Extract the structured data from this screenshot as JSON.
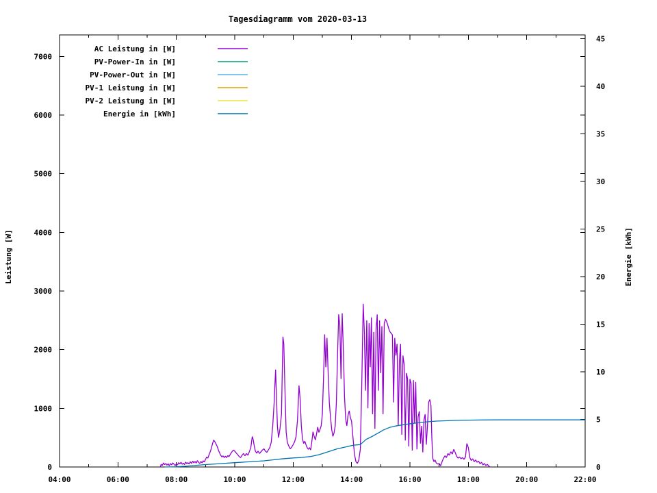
{
  "page": {
    "background": "#ffffff"
  },
  "chart_data": {
    "type": "line",
    "title": "Tagesdiagramm vom 2020-03-13",
    "grid": "off",
    "legend": {
      "position": "top-left",
      "border": false
    },
    "x_axis": {
      "unit": "time",
      "range_hours": [
        4,
        22
      ],
      "major_tick_step_hours": 2,
      "minor_tick_step_hours": 1,
      "tick_labels": [
        "04:00",
        "06:00",
        "08:00",
        "10:00",
        "12:00",
        "14:00",
        "16:00",
        "18:00",
        "20:00",
        "22:00"
      ]
    },
    "y_axis_left": {
      "label": "Leistung [W]",
      "range": [
        0,
        7365
      ],
      "ticks": [
        0,
        1000,
        2000,
        3000,
        4000,
        5000,
        6000,
        7000
      ]
    },
    "y_axis_right": {
      "label": "Energie [kWh]",
      "range": [
        0,
        45.4
      ],
      "ticks": [
        0,
        5,
        10,
        15,
        20,
        25,
        30,
        35,
        40,
        45
      ]
    },
    "series": [
      {
        "name": "AC Leistung in [W]",
        "color": "#9400d3",
        "axis": "left",
        "points": [
          [
            7.45,
            0
          ],
          [
            7.48,
            45
          ],
          [
            7.52,
            25
          ],
          [
            7.56,
            70
          ],
          [
            7.6,
            40
          ],
          [
            7.64,
            60
          ],
          [
            7.68,
            30
          ],
          [
            7.72,
            55
          ],
          [
            7.76,
            20
          ],
          [
            7.8,
            60
          ],
          [
            7.84,
            35
          ],
          [
            7.88,
            70
          ],
          [
            7.92,
            45
          ],
          [
            7.96,
            25
          ],
          [
            8,
            55
          ],
          [
            8.04,
            35
          ],
          [
            8.08,
            75
          ],
          [
            8.12,
            50
          ],
          [
            8.16,
            80
          ],
          [
            8.2,
            45
          ],
          [
            8.24,
            65
          ],
          [
            8.28,
            40
          ],
          [
            8.32,
            85
          ],
          [
            8.36,
            55
          ],
          [
            8.4,
            75
          ],
          [
            8.44,
            50
          ],
          [
            8.48,
            90
          ],
          [
            8.52,
            60
          ],
          [
            8.56,
            100
          ],
          [
            8.6,
            70
          ],
          [
            8.64,
            95
          ],
          [
            8.68,
            65
          ],
          [
            8.72,
            110
          ],
          [
            8.76,
            80
          ],
          [
            8.8,
            60
          ],
          [
            8.84,
            95
          ],
          [
            8.88,
            70
          ],
          [
            8.92,
            105
          ],
          [
            8.96,
            85
          ],
          [
            9,
            130
          ],
          [
            9.04,
            170
          ],
          [
            9.08,
            150
          ],
          [
            9.12,
            210
          ],
          [
            9.16,
            260
          ],
          [
            9.2,
            320
          ],
          [
            9.24,
            400
          ],
          [
            9.28,
            460
          ],
          [
            9.32,
            430
          ],
          [
            9.36,
            390
          ],
          [
            9.4,
            350
          ],
          [
            9.44,
            290
          ],
          [
            9.48,
            240
          ],
          [
            9.52,
            200
          ],
          [
            9.56,
            170
          ],
          [
            9.6,
            190
          ],
          [
            9.64,
            160
          ],
          [
            9.68,
            185
          ],
          [
            9.72,
            160
          ],
          [
            9.76,
            195
          ],
          [
            9.8,
            175
          ],
          [
            9.84,
            210
          ],
          [
            9.88,
            240
          ],
          [
            9.92,
            270
          ],
          [
            9.96,
            290
          ],
          [
            10,
            270
          ],
          [
            10.05,
            240
          ],
          [
            10.1,
            210
          ],
          [
            10.15,
            180
          ],
          [
            10.2,
            160
          ],
          [
            10.25,
            200
          ],
          [
            10.3,
            230
          ],
          [
            10.35,
            190
          ],
          [
            10.4,
            230
          ],
          [
            10.45,
            200
          ],
          [
            10.5,
            260
          ],
          [
            10.55,
            330
          ],
          [
            10.6,
            520
          ],
          [
            10.63,
            470
          ],
          [
            10.66,
            380
          ],
          [
            10.7,
            280
          ],
          [
            10.75,
            235
          ],
          [
            10.8,
            270
          ],
          [
            10.85,
            230
          ],
          [
            10.9,
            260
          ],
          [
            10.95,
            290
          ],
          [
            11,
            310
          ],
          [
            11.05,
            270
          ],
          [
            11.1,
            250
          ],
          [
            11.15,
            290
          ],
          [
            11.2,
            330
          ],
          [
            11.25,
            420
          ],
          [
            11.3,
            700
          ],
          [
            11.35,
            1100
          ],
          [
            11.4,
            1660
          ],
          [
            11.43,
            1200
          ],
          [
            11.46,
            700
          ],
          [
            11.5,
            500
          ],
          [
            11.55,
            650
          ],
          [
            11.6,
            900
          ],
          [
            11.65,
            2220
          ],
          [
            11.68,
            2100
          ],
          [
            11.72,
            1300
          ],
          [
            11.76,
            600
          ],
          [
            11.8,
            420
          ],
          [
            11.85,
            360
          ],
          [
            11.9,
            310
          ],
          [
            11.95,
            340
          ],
          [
            12,
            380
          ],
          [
            12.05,
            430
          ],
          [
            12.1,
            520
          ],
          [
            12.15,
            800
          ],
          [
            12.2,
            1390
          ],
          [
            12.24,
            1150
          ],
          [
            12.28,
            700
          ],
          [
            12.32,
            480
          ],
          [
            12.36,
            400
          ],
          [
            12.4,
            440
          ],
          [
            12.44,
            380
          ],
          [
            12.48,
            330
          ],
          [
            12.52,
            300
          ],
          [
            12.56,
            330
          ],
          [
            12.6,
            290
          ],
          [
            12.64,
            430
          ],
          [
            12.68,
            600
          ],
          [
            12.72,
            520
          ],
          [
            12.76,
            460
          ],
          [
            12.8,
            560
          ],
          [
            12.84,
            680
          ],
          [
            12.88,
            590
          ],
          [
            12.92,
            640
          ],
          [
            12.96,
            700
          ],
          [
            13,
            900
          ],
          [
            13.04,
            1500
          ],
          [
            13.08,
            2260
          ],
          [
            13.12,
            1700
          ],
          [
            13.16,
            2200
          ],
          [
            13.2,
            1600
          ],
          [
            13.24,
            1100
          ],
          [
            13.28,
            850
          ],
          [
            13.32,
            640
          ],
          [
            13.36,
            520
          ],
          [
            13.4,
            580
          ],
          [
            13.44,
            700
          ],
          [
            13.48,
            1100
          ],
          [
            13.52,
            1900
          ],
          [
            13.56,
            2600
          ],
          [
            13.6,
            2400
          ],
          [
            13.64,
            1500
          ],
          [
            13.68,
            2620
          ],
          [
            13.72,
            2000
          ],
          [
            13.76,
            1200
          ],
          [
            13.8,
            820
          ],
          [
            13.84,
            700
          ],
          [
            13.88,
            880
          ],
          [
            13.92,
            960
          ],
          [
            13.96,
            840
          ],
          [
            14,
            780
          ],
          [
            14.05,
            500
          ],
          [
            14.1,
            220
          ],
          [
            14.15,
            90
          ],
          [
            14.2,
            60
          ],
          [
            14.25,
            120
          ],
          [
            14.3,
            300
          ],
          [
            14.35,
            1400
          ],
          [
            14.4,
            2780
          ],
          [
            14.44,
            2300
          ],
          [
            14.48,
            1300
          ],
          [
            14.52,
            2500
          ],
          [
            14.56,
            1000
          ],
          [
            14.6,
            2450
          ],
          [
            14.64,
            1700
          ],
          [
            14.68,
            2550
          ],
          [
            14.72,
            900
          ],
          [
            14.76,
            2300
          ],
          [
            14.8,
            650
          ],
          [
            14.84,
            2350
          ],
          [
            14.88,
            2600
          ],
          [
            14.92,
            1300
          ],
          [
            14.96,
            2500
          ],
          [
            15,
            1600
          ],
          [
            15.04,
            2400
          ],
          [
            15.08,
            900
          ],
          [
            15.12,
            2450
          ],
          [
            15.16,
            2520
          ],
          [
            15.2,
            2480
          ],
          [
            15.24,
            2420
          ],
          [
            15.28,
            2350
          ],
          [
            15.32,
            2300
          ],
          [
            15.36,
            2280
          ],
          [
            15.4,
            2250
          ],
          [
            15.44,
            1100
          ],
          [
            15.48,
            2200
          ],
          [
            15.52,
            1900
          ],
          [
            15.56,
            2100
          ],
          [
            15.6,
            700
          ],
          [
            15.64,
            1800
          ],
          [
            15.68,
            2100
          ],
          [
            15.72,
            550
          ],
          [
            15.76,
            1900
          ],
          [
            15.8,
            1750
          ],
          [
            15.84,
            450
          ],
          [
            15.88,
            1600
          ],
          [
            15.92,
            1500
          ],
          [
            15.96,
            350
          ],
          [
            16,
            1500
          ],
          [
            16.04,
            1420
          ],
          [
            16.08,
            280
          ],
          [
            16.12,
            1480
          ],
          [
            16.16,
            750
          ],
          [
            16.2,
            1450
          ],
          [
            16.24,
            300
          ],
          [
            16.28,
            850
          ],
          [
            16.32,
            950
          ],
          [
            16.36,
            400
          ],
          [
            16.4,
            700
          ],
          [
            16.44,
            250
          ],
          [
            16.48,
            800
          ],
          [
            16.52,
            900
          ],
          [
            16.56,
            380
          ],
          [
            16.6,
            700
          ],
          [
            16.64,
            1100
          ],
          [
            16.68,
            1150
          ],
          [
            16.72,
            1050
          ],
          [
            16.75,
            500
          ],
          [
            16.78,
            150
          ],
          [
            16.82,
            90
          ],
          [
            16.86,
            120
          ],
          [
            16.9,
            70
          ],
          [
            16.95,
            50
          ],
          [
            17,
            60
          ],
          [
            17.05,
            20
          ],
          [
            17.1,
            90
          ],
          [
            17.15,
            150
          ],
          [
            17.2,
            190
          ],
          [
            17.25,
            160
          ],
          [
            17.3,
            230
          ],
          [
            17.35,
            200
          ],
          [
            17.4,
            260
          ],
          [
            17.45,
            220
          ],
          [
            17.5,
            300
          ],
          [
            17.55,
            250
          ],
          [
            17.6,
            180
          ],
          [
            17.65,
            150
          ],
          [
            17.7,
            170
          ],
          [
            17.75,
            140
          ],
          [
            17.8,
            160
          ],
          [
            17.85,
            130
          ],
          [
            17.9,
            170
          ],
          [
            17.95,
            400
          ],
          [
            18,
            330
          ],
          [
            18.05,
            160
          ],
          [
            18.1,
            110
          ],
          [
            18.15,
            140
          ],
          [
            18.2,
            90
          ],
          [
            18.25,
            120
          ],
          [
            18.3,
            80
          ],
          [
            18.35,
            100
          ],
          [
            18.4,
            55
          ],
          [
            18.45,
            80
          ],
          [
            18.5,
            35
          ],
          [
            18.55,
            60
          ],
          [
            18.6,
            25
          ],
          [
            18.65,
            45
          ],
          [
            18.7,
            15
          ],
          [
            18.75,
            0
          ]
        ]
      },
      {
        "name": "PV-Power-In in [W]",
        "color": "#009e73",
        "axis": "left",
        "points": []
      },
      {
        "name": "PV-Power-Out in [W]",
        "color": "#56b4e9",
        "axis": "left",
        "points": []
      },
      {
        "name": "PV-1 Leistung in [W]",
        "color": "#e69f00",
        "axis": "left",
        "points": []
      },
      {
        "name": "PV-2 Leistung in [W]",
        "color": "#f0e442",
        "axis": "left",
        "points": []
      },
      {
        "name": "Energie in [kWh]",
        "color": "#0072b2",
        "axis": "right",
        "points": [
          [
            7.6,
            0
          ],
          [
            8,
            0.02
          ],
          [
            8.3,
            0.08
          ],
          [
            8.6,
            0.15
          ],
          [
            9,
            0.25
          ],
          [
            9.5,
            0.35
          ],
          [
            10,
            0.45
          ],
          [
            10.5,
            0.55
          ],
          [
            11,
            0.65
          ],
          [
            11.3,
            0.75
          ],
          [
            11.6,
            0.85
          ],
          [
            12,
            0.95
          ],
          [
            12.3,
            1
          ],
          [
            12.6,
            1.1
          ],
          [
            12.9,
            1.3
          ],
          [
            13.2,
            1.6
          ],
          [
            13.5,
            1.9
          ],
          [
            13.8,
            2.1
          ],
          [
            14,
            2.25
          ],
          [
            14.1,
            2.3
          ],
          [
            14.3,
            2.35
          ],
          [
            14.5,
            2.9
          ],
          [
            14.7,
            3.2
          ],
          [
            14.9,
            3.55
          ],
          [
            15.1,
            3.9
          ],
          [
            15.3,
            4.15
          ],
          [
            15.5,
            4.3
          ],
          [
            15.7,
            4.4
          ],
          [
            15.9,
            4.5
          ],
          [
            16.1,
            4.58
          ],
          [
            16.3,
            4.65
          ],
          [
            16.6,
            4.75
          ],
          [
            16.9,
            4.82
          ],
          [
            17.2,
            4.86
          ],
          [
            17.6,
            4.9
          ],
          [
            18,
            4.92
          ],
          [
            18.5,
            4.94
          ],
          [
            19,
            4.95
          ],
          [
            22,
            4.95
          ]
        ]
      }
    ]
  }
}
